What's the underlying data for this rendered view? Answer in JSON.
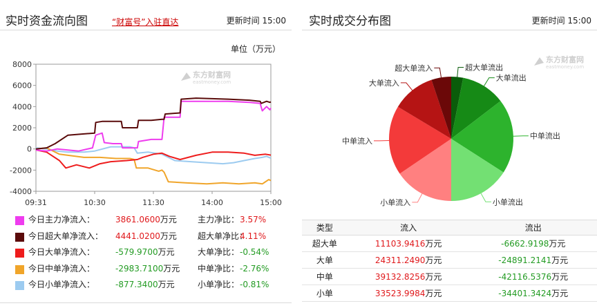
{
  "left": {
    "title": "实时资金流向图",
    "promo_link": "“财富号”入驻直达",
    "update_time": "更新时间 15:00",
    "unit": "单位（万元）",
    "watermark": "东方财富网 eastmoney.com"
  },
  "right": {
    "title": "实时成交分布图",
    "update_time": "更新时间 15:00",
    "watermark": "东方财富网 eastmoney.com"
  },
  "colors": {
    "main": "#ee3cee",
    "super": "#5a0a0a",
    "large": "#ee1c1c",
    "medium": "#f0a52a",
    "small": "#9ccbf0",
    "pos_text": "#e0191c",
    "neg_text": "#239b23"
  },
  "legend": [
    {
      "key": "main",
      "name": "今日主力净流入：",
      "value": "3861.0600",
      "unit": "万元",
      "ratio_label": "主力净比：",
      "ratio": "3.57%",
      "sign": "pos"
    },
    {
      "key": "super",
      "name": "今日超大单净流入：",
      "value": "4441.0200",
      "unit": "万元",
      "ratio_label": "超大单净比：",
      "ratio": "4.11%",
      "sign": "pos"
    },
    {
      "key": "large",
      "name": "今日大单净流入：",
      "value": "-579.9700",
      "unit": "万元",
      "ratio_label": "大单净比：",
      "ratio": "-0.54%",
      "sign": "neg"
    },
    {
      "key": "medium",
      "name": "今日中单净流入：",
      "value": "-2983.7100",
      "unit": "万元",
      "ratio_label": "中单净比：",
      "ratio": "-2.76%",
      "sign": "neg"
    },
    {
      "key": "small",
      "name": "今日小单净流入：",
      "value": "-877.3400",
      "unit": "万元",
      "ratio_label": "小单净比：",
      "ratio": "-0.81%",
      "sign": "neg"
    }
  ],
  "table": {
    "headers": [
      "类型",
      "流入",
      "流出"
    ],
    "unit": "万元",
    "rows": [
      {
        "type": "超大单",
        "inflow": "11103.9416",
        "outflow": "-6662.9198"
      },
      {
        "type": "大单",
        "inflow": "24311.2490",
        "outflow": "-24891.2141"
      },
      {
        "type": "中单",
        "inflow": "39132.8256",
        "outflow": "-42116.5376"
      },
      {
        "type": "小单",
        "inflow": "33523.9984",
        "outflow": "-34401.3424"
      }
    ]
  },
  "chart_data": [
    {
      "type": "line",
      "ylim": [
        -4000,
        8000
      ],
      "yticks": [
        -4000,
        -2000,
        0,
        2000,
        4000,
        6000,
        8000
      ],
      "xticks": [
        "09:31",
        "10:30",
        "11:30",
        "14:00",
        "15:00"
      ],
      "grid": false,
      "series": [
        {
          "key": "super",
          "name": "今日超大单净流入",
          "color": "#5a0a0a",
          "points": [
            [
              0,
              0
            ],
            [
              10,
              100
            ],
            [
              18,
              500
            ],
            [
              30,
              1300
            ],
            [
              42,
              1400
            ],
            [
              55,
              1500
            ],
            [
              56,
              2500
            ],
            [
              62,
              2600
            ],
            [
              80,
              2600
            ],
            [
              81,
              2000
            ],
            [
              95,
              2000
            ],
            [
              96,
              2700
            ],
            [
              108,
              2700
            ],
            [
              118,
              2800
            ],
            [
              120,
              2800
            ],
            [
              121,
              3300
            ],
            [
              135,
              3400
            ],
            [
              136,
              4700
            ],
            [
              150,
              4800
            ],
            [
              180,
              4700
            ],
            [
              200,
              4600
            ],
            [
              210,
              4500
            ],
            [
              211,
              4300
            ],
            [
              216,
              4500
            ],
            [
              219,
              4400
            ],
            [
              220,
              4441
            ]
          ]
        },
        {
          "key": "main",
          "name": "今日主力净流入",
          "color": "#ee3cee",
          "points": [
            [
              0,
              -100
            ],
            [
              10,
              -200
            ],
            [
              20,
              0
            ],
            [
              40,
              -200
            ],
            [
              53,
              100
            ],
            [
              56,
              1300
            ],
            [
              62,
              1500
            ],
            [
              64,
              600
            ],
            [
              72,
              500
            ],
            [
              80,
              500
            ],
            [
              81,
              100
            ],
            [
              95,
              100
            ],
            [
              96,
              700
            ],
            [
              108,
              900
            ],
            [
              118,
              900
            ],
            [
              120,
              3000
            ],
            [
              135,
              3000
            ],
            [
              136,
              4500
            ],
            [
              150,
              4500
            ],
            [
              180,
              4500
            ],
            [
              200,
              4400
            ],
            [
              210,
              4300
            ],
            [
              212,
              3600
            ],
            [
              216,
              4000
            ],
            [
              219,
              3700
            ],
            [
              220,
              3861
            ]
          ]
        },
        {
          "key": "large",
          "name": "今日大单净流入",
          "color": "#ee1c1c",
          "points": [
            [
              0,
              -100
            ],
            [
              10,
              -300
            ],
            [
              22,
              -1100
            ],
            [
              28,
              -1800
            ],
            [
              38,
              -1500
            ],
            [
              50,
              -1800
            ],
            [
              60,
              -1400
            ],
            [
              70,
              -1200
            ],
            [
              85,
              -1100
            ],
            [
              95,
              -1000
            ],
            [
              100,
              -800
            ],
            [
              110,
              -500
            ],
            [
              118,
              -400
            ],
            [
              125,
              -700
            ],
            [
              135,
              -1000
            ],
            [
              150,
              -600
            ],
            [
              165,
              -300
            ],
            [
              180,
              -300
            ],
            [
              195,
              -400
            ],
            [
              205,
              -600
            ],
            [
              215,
              -500
            ],
            [
              220,
              -580
            ]
          ]
        },
        {
          "key": "medium",
          "name": "今日中单净流入",
          "color": "#f0a52a",
          "points": [
            [
              0,
              0
            ],
            [
              10,
              100
            ],
            [
              22,
              -500
            ],
            [
              30,
              -600
            ],
            [
              45,
              -800
            ],
            [
              60,
              -800
            ],
            [
              75,
              -900
            ],
            [
              88,
              -900
            ],
            [
              92,
              -1000
            ],
            [
              94,
              -1800
            ],
            [
              105,
              -1800
            ],
            [
              115,
              -2100
            ],
            [
              118,
              -2000
            ],
            [
              120,
              -2200
            ],
            [
              124,
              -3100
            ],
            [
              140,
              -3200
            ],
            [
              160,
              -3300
            ],
            [
              175,
              -3200
            ],
            [
              190,
              -3300
            ],
            [
              205,
              -3200
            ],
            [
              212,
              -3300
            ],
            [
              218,
              -2900
            ],
            [
              220,
              -2984
            ]
          ]
        },
        {
          "key": "small",
          "name": "今日小单净流入",
          "color": "#9ccbf0",
          "points": [
            [
              0,
              100
            ],
            [
              10,
              0
            ],
            [
              20,
              -200
            ],
            [
              30,
              -300
            ],
            [
              45,
              -300
            ],
            [
              55,
              -200
            ],
            [
              70,
              200
            ],
            [
              88,
              200
            ],
            [
              92,
              100
            ],
            [
              95,
              -400
            ],
            [
              105,
              -300
            ],
            [
              118,
              -500
            ],
            [
              124,
              -800
            ],
            [
              130,
              -1100
            ],
            [
              145,
              -1200
            ],
            [
              160,
              -1300
            ],
            [
              175,
              -1400
            ],
            [
              185,
              -1300
            ],
            [
              195,
              -1100
            ],
            [
              205,
              -900
            ],
            [
              212,
              -800
            ],
            [
              216,
              -700
            ],
            [
              220,
              -877
            ]
          ]
        }
      ]
    },
    {
      "type": "pie",
      "slices": [
        {
          "label": "超大单流出",
          "value": 6662.9198,
          "color": "#0a5c0a"
        },
        {
          "label": "大单流出",
          "value": 24891.2141,
          "color": "#168a16"
        },
        {
          "label": "中单流出",
          "value": 42116.5376,
          "color": "#2db32d"
        },
        {
          "label": "小单流出",
          "value": 34401.3424,
          "color": "#73e073"
        },
        {
          "label": "小单流入",
          "value": 33523.9984,
          "color": "#ff8080"
        },
        {
          "label": "中单流入",
          "value": 39132.8256,
          "color": "#f33a3a"
        },
        {
          "label": "大单流入",
          "value": 24311.249,
          "color": "#b51414"
        },
        {
          "label": "超大单流入",
          "value": 11103.9416,
          "color": "#6b0808"
        }
      ]
    }
  ]
}
